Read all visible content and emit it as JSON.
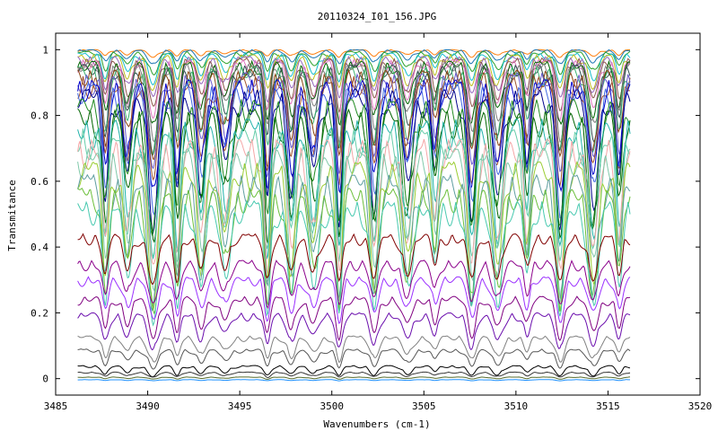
{
  "chart_data": {
    "type": "line",
    "title": "20110324_I01_156.JPG",
    "xlabel": "Wavenumbers (cm-1)",
    "ylabel": "Transmitance",
    "xlim": [
      3485,
      3520
    ],
    "ylim": [
      -0.05,
      1.05
    ],
    "x_ticks": [
      3485,
      3490,
      3495,
      3500,
      3505,
      3510,
      3515,
      3520
    ],
    "x_tick_labels": [
      "3485",
      "3490",
      "3495",
      "3500",
      "3505",
      "3510",
      "3515",
      "3520"
    ],
    "y_ticks": [
      0,
      0.2,
      0.4,
      0.6,
      0.8,
      1
    ],
    "y_tick_labels": [
      "0",
      "0.2",
      "0.4",
      "0.6",
      "0.8",
      "1"
    ],
    "grid": false,
    "legend": "none",
    "x_range_of_data": [
      3486.2,
      3516.2
    ],
    "absorption_lines": [
      3487.7,
      3488.9,
      3490.3,
      3491.6,
      3492.9,
      3494.2,
      3496.5,
      3497.8,
      3499.0,
      3500.4,
      3502.3,
      3504.1,
      3505.6,
      3507.6,
      3509.0,
      3510.6,
      3512.4,
      3514.2,
      3515.6
    ],
    "series": [
      {
        "baseline": 1.0,
        "depth": 0.02,
        "color": "#ff7f0e"
      },
      {
        "baseline": 1.0,
        "depth": 0.04,
        "color": "#1f77b4"
      },
      {
        "baseline": 0.995,
        "depth": 0.06,
        "color": "#2ca02c"
      },
      {
        "baseline": 0.99,
        "depth": 0.08,
        "color": "#17becf"
      },
      {
        "baseline": 0.985,
        "depth": 0.1,
        "color": "#bcbd22"
      },
      {
        "baseline": 0.98,
        "depth": 0.12,
        "color": "#9467bd"
      },
      {
        "baseline": 0.975,
        "depth": 0.14,
        "color": "#8c564b"
      },
      {
        "baseline": 0.97,
        "depth": 0.16,
        "color": "#e377c2"
      },
      {
        "baseline": 0.965,
        "depth": 0.18,
        "color": "#006400"
      },
      {
        "baseline": 0.96,
        "depth": 0.2,
        "color": "#7f7f7f"
      },
      {
        "baseline": 0.955,
        "depth": 0.22,
        "color": "#2f4f4f"
      },
      {
        "baseline": 0.95,
        "depth": 0.24,
        "color": "#3cb371"
      },
      {
        "baseline": 0.94,
        "depth": 0.26,
        "color": "#8b4513"
      },
      {
        "baseline": 0.93,
        "depth": 0.28,
        "color": "#6a5acd"
      },
      {
        "baseline": 0.92,
        "depth": 0.3,
        "color": "#a0522d"
      },
      {
        "baseline": 0.91,
        "depth": 0.32,
        "color": "#0000cd"
      },
      {
        "baseline": 0.9,
        "depth": 0.34,
        "color": "#4169e1"
      },
      {
        "baseline": 0.88,
        "depth": 0.35,
        "color": "#00008b"
      },
      {
        "baseline": 0.85,
        "depth": 0.36,
        "color": "#228b22"
      },
      {
        "baseline": 0.82,
        "depth": 0.37,
        "color": "#006400"
      },
      {
        "baseline": 0.79,
        "depth": 0.38,
        "color": "#20b2aa"
      },
      {
        "baseline": 0.76,
        "depth": 0.38,
        "color": "#66cdaa"
      },
      {
        "baseline": 0.73,
        "depth": 0.38,
        "color": "#f4a6a6"
      },
      {
        "baseline": 0.7,
        "depth": 0.38,
        "color": "#7fc8a9"
      },
      {
        "baseline": 0.66,
        "depth": 0.37,
        "color": "#9acd32"
      },
      {
        "baseline": 0.62,
        "depth": 0.36,
        "color": "#5f9ea0"
      },
      {
        "baseline": 0.58,
        "depth": 0.34,
        "color": "#6bbf3a"
      },
      {
        "baseline": 0.54,
        "depth": 0.32,
        "color": "#48c9b0"
      },
      {
        "baseline": 0.44,
        "depth": 0.14,
        "color": "#800000"
      },
      {
        "baseline": 0.36,
        "depth": 0.13,
        "color": "#8b008b"
      },
      {
        "baseline": 0.31,
        "depth": 0.12,
        "color": "#9b30ff"
      },
      {
        "baseline": 0.25,
        "depth": 0.11,
        "color": "#800080"
      },
      {
        "baseline": 0.2,
        "depth": 0.1,
        "color": "#6a0dad"
      },
      {
        "baseline": 0.13,
        "depth": 0.07,
        "color": "#808080"
      },
      {
        "baseline": 0.09,
        "depth": 0.05,
        "color": "#555555"
      },
      {
        "baseline": 0.04,
        "depth": 0.03,
        "color": "#000000"
      },
      {
        "baseline": 0.02,
        "depth": 0.015,
        "color": "#333333"
      },
      {
        "baseline": 0.005,
        "depth": 0.006,
        "color": "#556b2f"
      },
      {
        "baseline": -0.003,
        "depth": 0.003,
        "color": "#1e90ff"
      }
    ]
  }
}
